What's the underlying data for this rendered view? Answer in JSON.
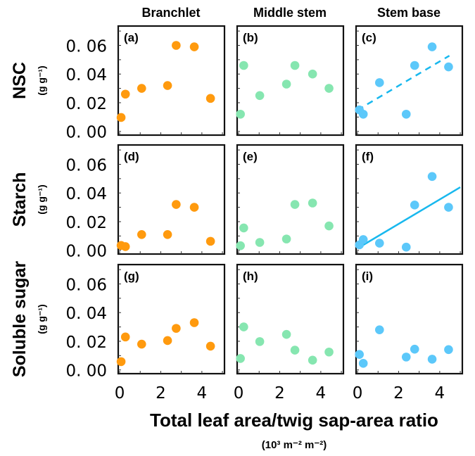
{
  "chart_data": {
    "type": "scatter",
    "xlabel": "Total leaf area/twig sap-area ratio",
    "xunit": "(10³ m⁻² m⁻²)",
    "column_titles": [
      "Branchlet",
      "Middle stem",
      "Stem base"
    ],
    "row_labels": [
      {
        "name": "NSC",
        "unit": "(g g⁻¹)"
      },
      {
        "name": "Starch",
        "unit": "(g g⁻¹)"
      },
      {
        "name": "Soluble sugar",
        "unit": "(g g⁻¹)"
      }
    ],
    "xlim": [
      -0.07,
      5.1
    ],
    "ylim": [
      -0.0026,
      0.0735
    ],
    "x_ticks": [
      "0",
      "2",
      "4"
    ],
    "x_tick_values": [
      0,
      2,
      4
    ],
    "y_ticks": [
      "0. 00",
      "0. 02",
      "0. 04",
      "0. 06"
    ],
    "y_tick_values": [
      0,
      0.02,
      0.04,
      0.06
    ],
    "colors": {
      "branchlet": "#ff9a0e",
      "middle": "#86e6b0",
      "base": "#5cc8fa",
      "line": "#18b8ee"
    },
    "panels": [
      {
        "label": "(a)",
        "row": 0,
        "col": 0,
        "x": [
          0.07,
          0.28,
          1.07,
          2.33,
          2.75,
          3.63,
          4.42
        ],
        "y": [
          0.0097,
          0.026,
          0.03,
          0.032,
          0.06,
          0.059,
          0.023
        ]
      },
      {
        "label": "(b)",
        "row": 0,
        "col": 1,
        "x": [
          0.09,
          0.25,
          1.03,
          2.33,
          2.74,
          3.6,
          4.4
        ],
        "y": [
          0.012,
          0.046,
          0.025,
          0.033,
          0.046,
          0.04,
          0.03
        ]
      },
      {
        "label": "(c)",
        "row": 0,
        "col": 2,
        "x": [
          0.09,
          0.28,
          1.07,
          2.37,
          2.78,
          3.63,
          4.43
        ],
        "y": [
          0.015,
          0.012,
          0.034,
          0.012,
          0.046,
          0.059,
          0.045
        ],
        "fit": {
          "x": [
            0,
            4.47
          ],
          "y": [
            0.0149,
            0.0528
          ],
          "style": "dashed"
        }
      },
      {
        "label": "(d)",
        "row": 1,
        "col": 0,
        "x": [
          0.07,
          0.28,
          1.07,
          2.33,
          2.75,
          3.63,
          4.42
        ],
        "y": [
          0.0034,
          0.0026,
          0.011,
          0.011,
          0.032,
          0.03,
          0.0063
        ]
      },
      {
        "label": "(e)",
        "row": 1,
        "col": 1,
        "x": [
          0.09,
          0.25,
          1.03,
          2.33,
          2.74,
          3.6,
          4.4
        ],
        "y": [
          0.0032,
          0.0156,
          0.0055,
          0.0079,
          0.032,
          0.033,
          0.017
        ]
      },
      {
        "label": "(f)",
        "row": 1,
        "col": 2,
        "x": [
          0.09,
          0.28,
          1.07,
          2.37,
          2.78,
          3.63,
          4.43
        ],
        "y": [
          0.0038,
          0.0075,
          0.005,
          0.0022,
          0.0316,
          0.0515,
          0.03
        ],
        "fit": {
          "x": [
            0.04,
            5.0
          ],
          "y": [
            0.0017,
            0.044
          ],
          "style": "solid"
        }
      },
      {
        "label": "(g)",
        "row": 2,
        "col": 0,
        "x": [
          0.07,
          0.28,
          1.07,
          2.33,
          2.75,
          3.63,
          4.42
        ],
        "y": [
          0.0058,
          0.023,
          0.018,
          0.0205,
          0.029,
          0.033,
          0.0166
        ]
      },
      {
        "label": "(h)",
        "row": 2,
        "col": 1,
        "x": [
          0.09,
          0.25,
          1.03,
          2.33,
          2.74,
          3.6,
          4.4
        ],
        "y": [
          0.008,
          0.03,
          0.0198,
          0.0248,
          0.0138,
          0.0068,
          0.0125
        ]
      },
      {
        "label": "(i)",
        "row": 2,
        "col": 2,
        "x": [
          0.09,
          0.28,
          1.07,
          2.37,
          2.78,
          3.63,
          4.43
        ],
        "y": [
          0.0108,
          0.0046,
          0.028,
          0.009,
          0.0145,
          0.0075,
          0.0142
        ]
      }
    ]
  }
}
